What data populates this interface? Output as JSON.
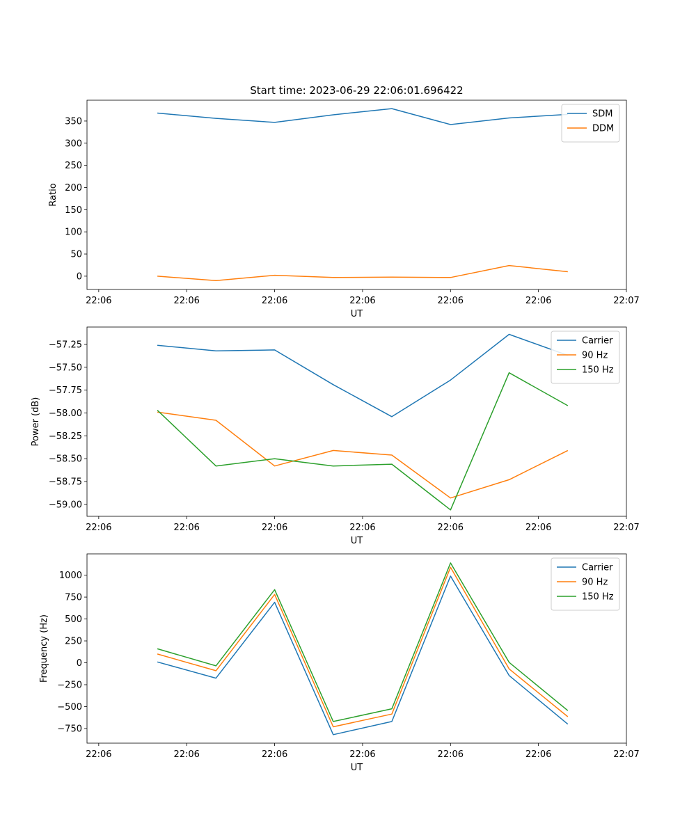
{
  "figure_title": "Start time: 2023-06-29 22:06:01.696422",
  "chart_data": [
    {
      "type": "line",
      "title": "Start time: 2023-06-29 22:06:01.696422",
      "xlabel": "UT",
      "ylabel": "Ratio",
      "x": [
        1,
        2,
        3,
        4,
        5,
        6,
        7,
        8
      ],
      "xlim": [
        -0.2,
        9.0
      ],
      "xticks": [
        0,
        1.5,
        3,
        4.5,
        6,
        7.5,
        9
      ],
      "xtick_labels": [
        "22:06",
        "22:06",
        "22:06",
        "22:06",
        "22:06",
        "22:06",
        "22:07"
      ],
      "ylim": [
        -30,
        397
      ],
      "yticks": [
        0,
        50,
        100,
        150,
        200,
        250,
        300,
        350
      ],
      "grid": false,
      "legend_position": "upper-right",
      "series": [
        {
          "name": "SDM",
          "color": "#1f77b4",
          "values": [
            368,
            356,
            347,
            364,
            378,
            342,
            357,
            365
          ]
        },
        {
          "name": "DDM",
          "color": "#ff7f0e",
          "values": [
            0,
            -10,
            2,
            -3,
            -2,
            -3,
            24,
            10
          ]
        }
      ]
    },
    {
      "type": "line",
      "xlabel": "UT",
      "ylabel": "Power (dB)",
      "x": [
        1,
        2,
        3,
        4,
        5,
        6,
        7,
        8
      ],
      "xlim": [
        -0.2,
        9.0
      ],
      "xticks": [
        0,
        1.5,
        3,
        4.5,
        6,
        7.5,
        9
      ],
      "xtick_labels": [
        "22:06",
        "22:06",
        "22:06",
        "22:06",
        "22:06",
        "22:06",
        "22:07"
      ],
      "ylim": [
        -59.13,
        -57.06
      ],
      "yticks": [
        -59.0,
        -58.75,
        -58.5,
        -58.25,
        -58.0,
        -57.75,
        -57.5,
        -57.25
      ],
      "ytick_labels": [
        "−59.00",
        "−58.75",
        "−58.50",
        "−58.25",
        "−58.00",
        "−57.75",
        "−57.50",
        "−57.25"
      ],
      "grid": false,
      "legend_position": "upper-right",
      "series": [
        {
          "name": "Carrier",
          "color": "#1f77b4",
          "values": [
            -57.26,
            -57.32,
            -57.31,
            -57.69,
            -58.04,
            -57.64,
            -57.14,
            -57.37
          ]
        },
        {
          "name": "90 Hz",
          "color": "#ff7f0e",
          "values": [
            -57.99,
            -58.08,
            -58.58,
            -58.41,
            -58.46,
            -58.93,
            -58.73,
            -58.41
          ]
        },
        {
          "name": "150 Hz",
          "color": "#2ca02c",
          "values": [
            -57.97,
            -58.58,
            -58.5,
            -58.58,
            -58.56,
            -59.06,
            -57.56,
            -57.92
          ]
        }
      ]
    },
    {
      "type": "line",
      "xlabel": "UT",
      "ylabel": "Frequency (Hz)",
      "x": [
        1,
        2,
        3,
        4,
        5,
        6,
        7,
        8
      ],
      "xlim": [
        -0.2,
        9.0
      ],
      "xticks": [
        0,
        1.5,
        3,
        4.5,
        6,
        7.5,
        9
      ],
      "xtick_labels": [
        "22:06",
        "22:06",
        "22:06",
        "22:06",
        "22:06",
        "22:06",
        "22:07"
      ],
      "ylim": [
        -917,
        1243
      ],
      "yticks": [
        -750,
        -500,
        -250,
        0,
        250,
        500,
        750,
        1000
      ],
      "ytick_labels": [
        "−750",
        "−500",
        "−250",
        "0",
        "250",
        "500",
        "750",
        "1000"
      ],
      "grid": false,
      "legend_position": "upper-right",
      "series": [
        {
          "name": "Carrier",
          "color": "#1f77b4",
          "values": [
            10,
            -175,
            690,
            -820,
            -670,
            990,
            -145,
            -700
          ]
        },
        {
          "name": "90 Hz",
          "color": "#ff7f0e",
          "values": [
            100,
            -90,
            780,
            -730,
            -585,
            1090,
            -70,
            -615
          ]
        },
        {
          "name": "150 Hz",
          "color": "#2ca02c",
          "values": [
            160,
            -35,
            835,
            -670,
            -525,
            1140,
            5,
            -545
          ]
        }
      ]
    }
  ]
}
